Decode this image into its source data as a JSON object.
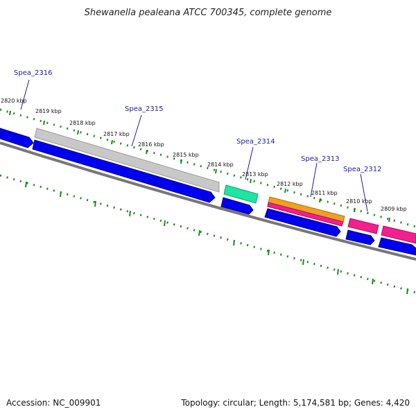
{
  "title": "Shewanella pealeana ATCC 700345, complete genome",
  "accession_label": "Accession: NC_009901",
  "topology_label": "Topology: circular; Length: 5,174,581 bp; Genes: 4,420",
  "colors": {
    "forward_cds": "#0000f0",
    "reverse_cds": "#0000f0",
    "gene_gray": "#c8c8c8",
    "gene_teal": "#1ee6a0",
    "gene_orange": "#f0a020",
    "gene_pink": "#f0208c",
    "backbone": "#777777",
    "ticks": "#1a8a1a",
    "labels": "#1a1aa6"
  },
  "tick_labels": [
    "2820 kbp",
    "2819 kbp",
    "2818 kbp",
    "2817 kbp",
    "2816 kbp",
    "2815 kbp",
    "2814 kbp",
    "2813 kbp",
    "2812 kbp",
    "2811 kbp",
    "2810 kbp",
    "2809 kbp"
  ],
  "gene_labels": [
    "Spea_2316",
    "Spea_2315",
    "Spea_2314",
    "Spea_2313",
    "Spea_2312"
  ]
}
